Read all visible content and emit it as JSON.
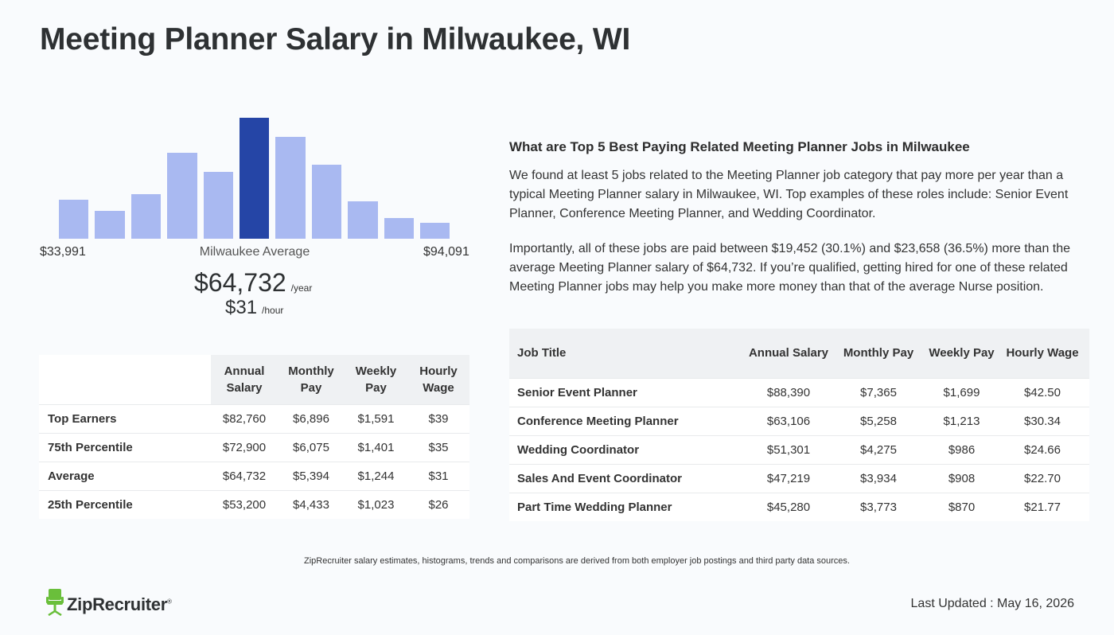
{
  "page": {
    "title": "Meeting Planner Salary in Milwaukee, WI"
  },
  "histogram": {
    "bar_heights_pct": [
      0.32,
      0.23,
      0.37,
      0.71,
      0.55,
      1.0,
      0.84,
      0.61,
      0.31,
      0.17,
      0.13
    ],
    "highlight_index": 5,
    "colors": {
      "bar": "#a9b9f1",
      "highlight": "#2545a6"
    },
    "min_label": "$33,991",
    "max_label": "$94,091",
    "avg_label": "Milwaukee Average"
  },
  "summary": {
    "annual": "$64,732",
    "annual_unit": "/year",
    "hourly": "$31",
    "hourly_unit": "/hour"
  },
  "percentile_table": {
    "headers": [
      "Annual Salary",
      "Monthly Pay",
      "Weekly Pay",
      "Hourly Wage"
    ],
    "rows": [
      {
        "label": "Top Earners",
        "annual": "$82,760",
        "monthly": "$6,896",
        "weekly": "$1,591",
        "hourly": "$39"
      },
      {
        "label": "75th Percentile",
        "annual": "$72,900",
        "monthly": "$6,075",
        "weekly": "$1,401",
        "hourly": "$35"
      },
      {
        "label": "Average",
        "annual": "$64,732",
        "monthly": "$5,394",
        "weekly": "$1,244",
        "hourly": "$31"
      },
      {
        "label": "25th Percentile",
        "annual": "$53,200",
        "monthly": "$4,433",
        "weekly": "$1,023",
        "hourly": "$26"
      }
    ]
  },
  "related": {
    "heading": "What are Top 5 Best Paying Related Meeting Planner Jobs in Milwaukee",
    "paragraph1": "We found at least 5 jobs related to the Meeting Planner job category that pay more per year than a typical Meeting Planner salary in Milwaukee, WI. Top examples of these roles include: Senior Event Planner, Conference Meeting Planner, and Wedding Coordinator.",
    "paragraph2": "Importantly, all of these jobs are paid between $19,452 (30.1%) and $23,658 (36.5%) more than the average Meeting Planner salary of $64,732. If you’re qualified, getting hired for one of these related Meeting Planner jobs may help you make more money than that of the average Nurse position."
  },
  "jobs_table": {
    "headers": [
      "Job Title",
      "Annual Salary",
      "Monthly Pay",
      "Weekly Pay",
      "Hourly Wage"
    ],
    "rows": [
      {
        "title": "Senior Event Planner",
        "annual": "$88,390",
        "monthly": "$7,365",
        "weekly": "$1,699",
        "hourly": "$42.50"
      },
      {
        "title": "Conference Meeting Planner",
        "annual": "$63,106",
        "monthly": "$5,258",
        "weekly": "$1,213",
        "hourly": "$30.34"
      },
      {
        "title": "Wedding Coordinator",
        "annual": "$51,301",
        "monthly": "$4,275",
        "weekly": "$986",
        "hourly": "$24.66"
      },
      {
        "title": "Sales And Event Coordinator",
        "annual": "$47,219",
        "monthly": "$3,934",
        "weekly": "$908",
        "hourly": "$22.70"
      },
      {
        "title": "Part Time Wedding Planner",
        "annual": "$45,280",
        "monthly": "$3,773",
        "weekly": "$870",
        "hourly": "$21.77"
      }
    ]
  },
  "footer": {
    "disclaimer": "ZipRecruiter salary estimates, histograms, trends and comparisons are derived from both employer job postings and third party data sources.",
    "logo_text": "ZipRecruiter",
    "logo_mark": "®",
    "logo_icon": "ziprecruiter-chair-icon",
    "logo_color": "#6abf3b",
    "last_updated": "Last Updated : May 16, 2026"
  }
}
